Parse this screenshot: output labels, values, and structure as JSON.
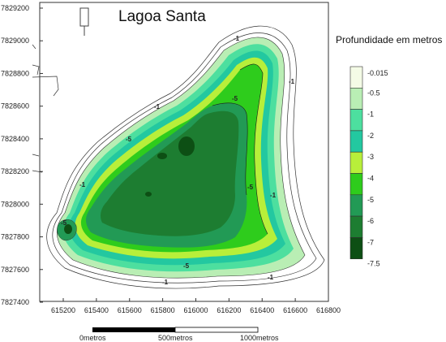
{
  "title": "Lagoa Santa",
  "legend": {
    "title": "Profundidade em metros",
    "classes": [
      {
        "label": "-0.015",
        "color": "#ffffff"
      },
      {
        "label": "-0.5",
        "color": "#f4fbe6"
      },
      {
        "label": "-1",
        "color": "#b9eeb4"
      },
      {
        "label": "-2",
        "color": "#4ddf9f"
      },
      {
        "label": "-3",
        "color": "#23c8a0"
      },
      {
        "label": "-4",
        "color": "#b8ef3a"
      },
      {
        "label": "-5",
        "color": "#2ecc1c"
      },
      {
        "label": "-6",
        "color": "#229a55"
      },
      {
        "label": "-7",
        "color": "#1d7d31"
      },
      {
        "label": "-7.5",
        "color": "#0d4f14"
      }
    ]
  },
  "axes": {
    "y_ticks": [
      "7829200",
      "7829000",
      "7828800",
      "7828600",
      "7828400",
      "7828200",
      "7828000",
      "7827800",
      "7827600",
      "7827400"
    ],
    "x_ticks": [
      "615200",
      "615400",
      "615600",
      "615800",
      "616000",
      "616200",
      "616400",
      "616600",
      "616800"
    ]
  },
  "scale_bar": {
    "labels": [
      "0metros",
      "500metros",
      "1000metros"
    ]
  },
  "contour_labels": [
    "-1",
    "-1",
    "-1",
    "-5",
    "-5",
    "-1",
    "-1",
    "-5",
    "-5",
    "-1",
    "-1",
    "-5"
  ]
}
